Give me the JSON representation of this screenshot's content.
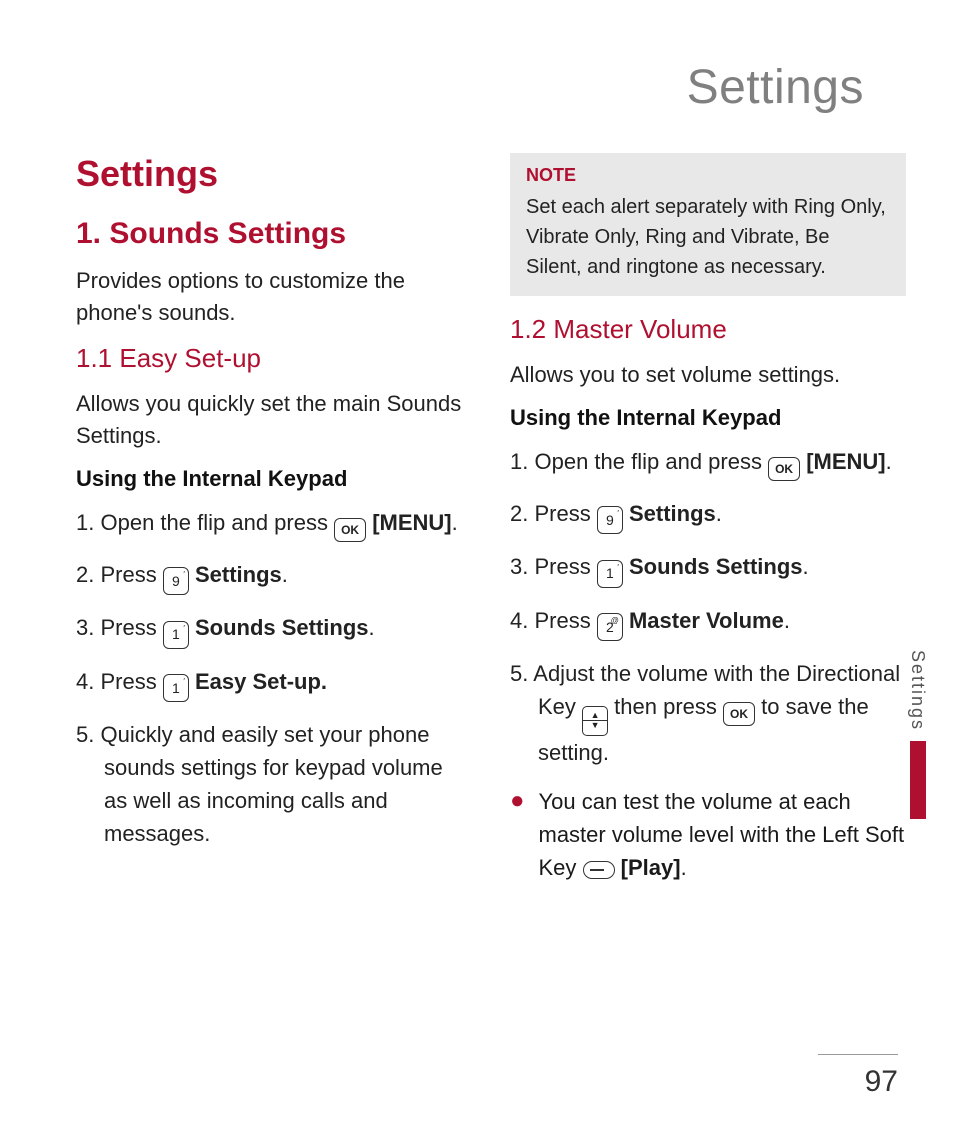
{
  "colors": {
    "accent": "#b01030",
    "chapter_title": "#808080",
    "text": "#1a1a1a",
    "note_bg": "#e8e8e8",
    "page_bg": "#ffffff",
    "rule": "#999999"
  },
  "typography": {
    "body_fontsize_pt": 16,
    "h1_fontsize_pt": 27,
    "h2_fontsize_pt": 22,
    "h3_fontsize_pt": 19,
    "chapter_fontsize_pt": 36
  },
  "chapter_title": "Settings",
  "side_tab": "Settings",
  "page_number": "97",
  "left": {
    "h1": "Settings",
    "h2": "1. Sounds Settings",
    "intro": "Provides options to customize the phone's sounds.",
    "h3": "1.1 Easy Set-up",
    "desc": "Allows you quickly set the main Sounds Settings.",
    "subhead": "Using the Internal Keypad",
    "steps": {
      "s1a": "Open the flip and press ",
      "s1b": "[MENU]",
      "s2a": "Press ",
      "s2b": "Settings",
      "s3a": "Press ",
      "s3b": "Sounds Settings",
      "s4a": "Press ",
      "s4b": "Easy Set-up.",
      "s5": "Quickly and easily set your phone sounds settings for keypad volume as well as incoming calls and messages."
    },
    "keys": {
      "k2": "9",
      "k3": "1",
      "k4": "1"
    }
  },
  "right": {
    "note_label": "NOTE",
    "note_text": "Set each alert separately with Ring Only, Vibrate Only, Ring and Vibrate, Be Silent, and ringtone as necessary.",
    "h3": "1.2 Master Volume",
    "desc": "Allows you to set volume settings.",
    "subhead": "Using the Internal Keypad",
    "steps": {
      "s1a": "Open the flip and press ",
      "s1b": "[MENU]",
      "s2a": "Press ",
      "s2b": "Settings",
      "s3a": "Press ",
      "s3b": "Sounds Settings",
      "s4a": "Press ",
      "s4b": "Master Volume",
      "s5a": "Adjust the volume with the Directional Key ",
      "s5b": " then press ",
      "s5c": " to save the setting."
    },
    "keys": {
      "k2": "9",
      "k3": "1",
      "k4": "2"
    },
    "bullet": {
      "a": "You can test the volume at each master volume level with the Left Soft Key ",
      "b": "[Play]"
    }
  },
  "period": ".",
  "ok_label": "OK"
}
